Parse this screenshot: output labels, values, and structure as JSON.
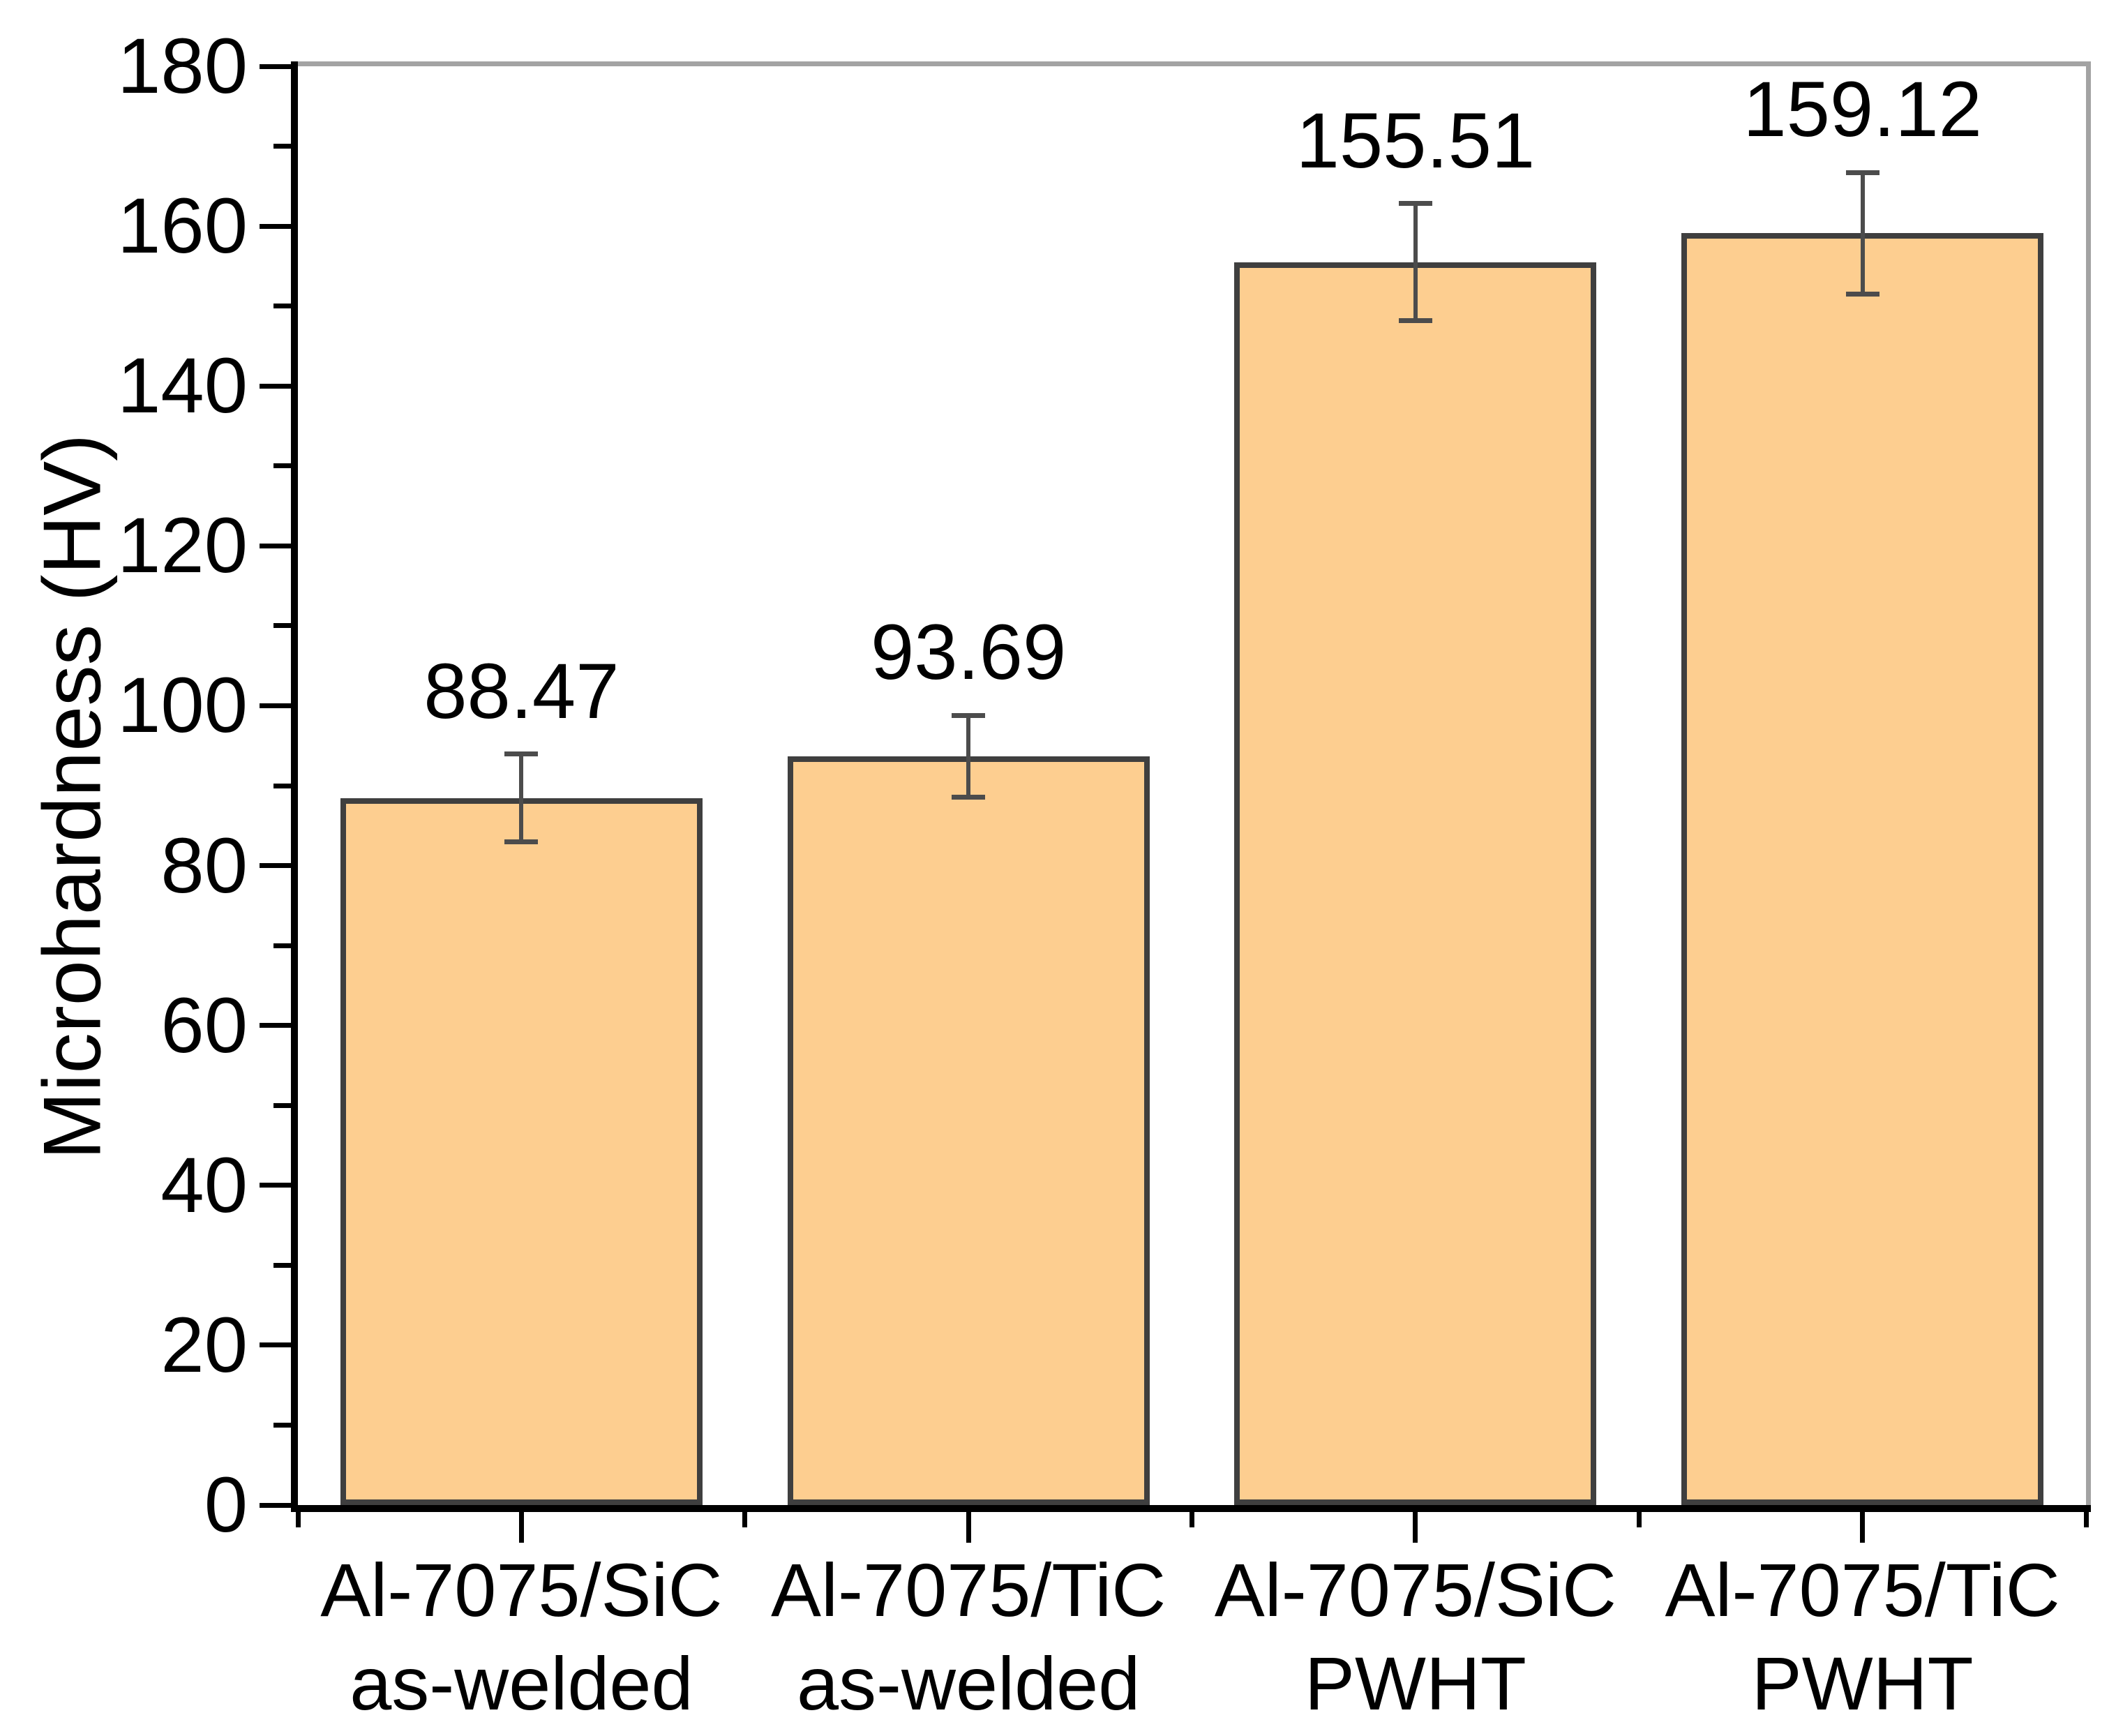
{
  "page": {
    "background": "#FFFFFF"
  },
  "chart_data": {
    "type": "bar",
    "title": "",
    "xlabel": "",
    "ylabel": "Microhardness (HV)",
    "categories": [
      [
        "Al-7075/SiC",
        "as-welded"
      ],
      [
        "Al-7075/TiC",
        "as-welded"
      ],
      [
        "Al-7075/SiC",
        "PWHT"
      ],
      [
        "Al-7075/TiC",
        "PWHT"
      ]
    ],
    "values": [
      88.47,
      93.69,
      155.51,
      159.12
    ],
    "value_labels": [
      "88.47",
      "93.69",
      "155.51",
      "159.12"
    ],
    "errors": [
      5.5,
      5.1,
      7.3,
      7.6
    ],
    "ylim": [
      0,
      180
    ],
    "ytick_major_step": 20,
    "ytick_minor_step": 10,
    "ytick_labels": [
      "0",
      "20",
      "40",
      "60",
      "80",
      "100",
      "120",
      "140",
      "160",
      "180"
    ],
    "grid": false,
    "legend": "none",
    "bar_width_fraction": 0.81,
    "colors": {
      "bar_fill": "#FDCE90",
      "bar_border": "#3F3F3F",
      "axis": "#000000",
      "frame": "#A3A3A3",
      "error_bar": "#4C4C4C",
      "text": "#000000",
      "background": "#FFFFFF"
    }
  }
}
